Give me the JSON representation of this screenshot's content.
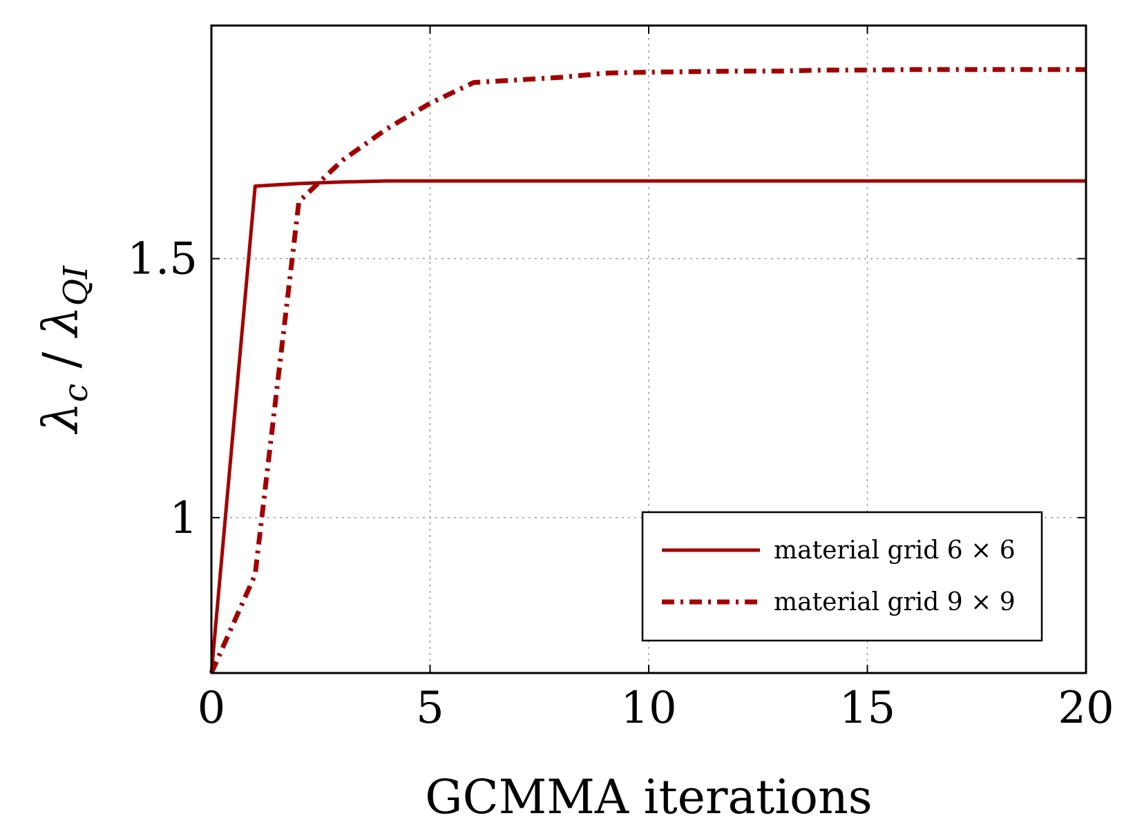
{
  "chart_data": {
    "type": "line",
    "title": "",
    "xlabel": "GCMMA iterations",
    "ylabel": {
      "symbol_numerator": "λ",
      "sub_numerator": "c",
      "separator": " / ",
      "symbol_denominator": "λ",
      "sub_denominator": "QI"
    },
    "xlim": [
      0,
      20
    ],
    "ylim": [
      0.7,
      1.95
    ],
    "xticks": [
      0,
      5,
      10,
      15,
      20
    ],
    "xtick_labels": [
      "0",
      "5",
      "10",
      "15",
      "20"
    ],
    "yticks": [
      1.0,
      1.5
    ],
    "ytick_labels": [
      "1",
      "1.5"
    ],
    "grid": true,
    "legend_position": "bottom-right",
    "colors": {
      "series": "#a30000",
      "axis": "#000000",
      "grid": "#9a9a9a"
    },
    "series": [
      {
        "name": "material grid 6 × 6",
        "style": "solid",
        "x": [
          0,
          1,
          2,
          3,
          4,
          5,
          6,
          7,
          8,
          9,
          10,
          11,
          12,
          13,
          14,
          15,
          16,
          17,
          18,
          19,
          20
        ],
        "y": [
          0.7,
          1.64,
          1.645,
          1.648,
          1.65,
          1.65,
          1.65,
          1.65,
          1.65,
          1.65,
          1.65,
          1.65,
          1.65,
          1.65,
          1.65,
          1.65,
          1.65,
          1.65,
          1.65,
          1.65,
          1.65
        ]
      },
      {
        "name": "material grid 9 × 9",
        "style": "dashdot",
        "x": [
          0,
          1,
          2,
          3,
          4,
          5,
          6,
          7,
          8,
          9,
          10,
          11,
          12,
          13,
          14,
          15,
          16,
          17,
          18,
          19,
          20
        ],
        "y": [
          0.7,
          0.89,
          1.61,
          1.69,
          1.75,
          1.8,
          1.84,
          1.845,
          1.85,
          1.858,
          1.86,
          1.861,
          1.862,
          1.862,
          1.864,
          1.864,
          1.865,
          1.865,
          1.865,
          1.865,
          1.865
        ]
      }
    ]
  }
}
